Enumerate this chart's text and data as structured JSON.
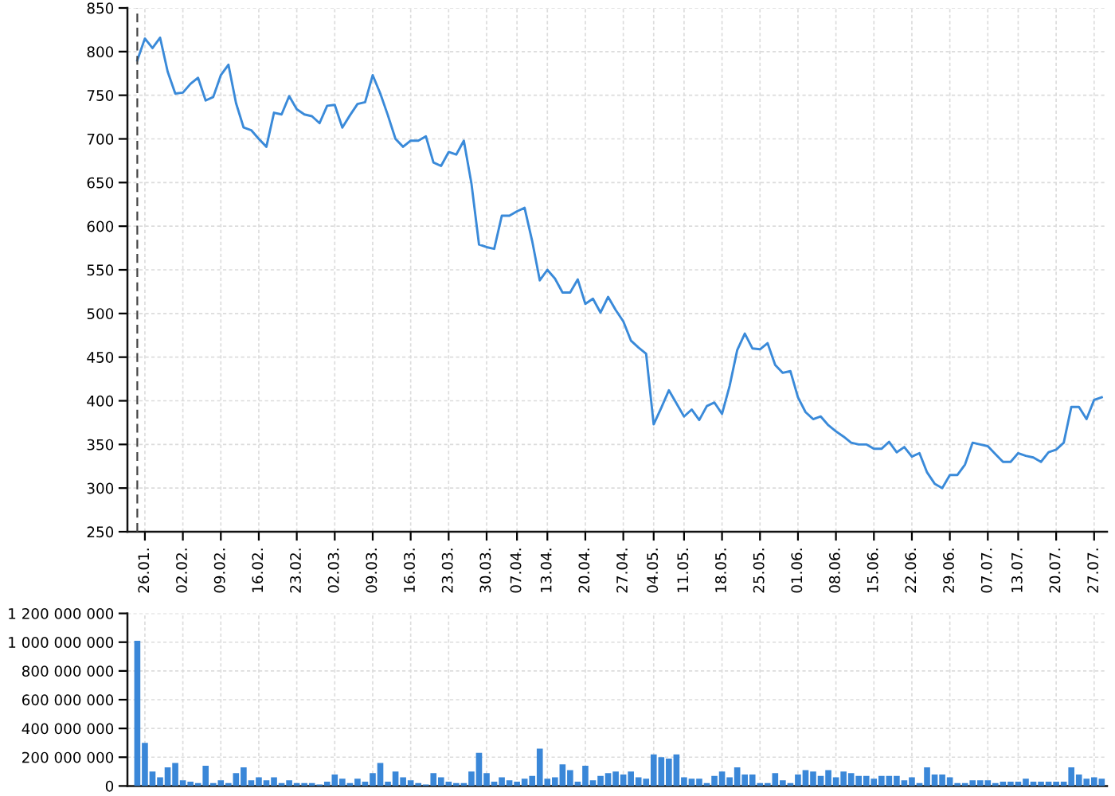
{
  "chart_data": [
    {
      "type": "line",
      "color": "#3a8ad9",
      "categories": [
        null,
        "26.01.",
        null,
        null,
        null,
        null,
        "02.02.",
        null,
        null,
        null,
        null,
        "09.02.",
        null,
        null,
        null,
        null,
        "16.02.",
        null,
        null,
        null,
        null,
        "23.02.",
        null,
        null,
        null,
        null,
        "02.03.",
        null,
        null,
        null,
        null,
        "09.03.",
        null,
        null,
        null,
        null,
        "16.03.",
        null,
        null,
        null,
        null,
        "23.03.",
        null,
        null,
        null,
        null,
        "30.03.",
        null,
        null,
        null,
        "07.04.",
        null,
        null,
        null,
        "13.04.",
        null,
        null,
        null,
        null,
        "20.04.",
        null,
        null,
        null,
        null,
        "27.04.",
        null,
        null,
        null,
        "04.05.",
        null,
        null,
        null,
        "11.05.",
        null,
        null,
        null,
        null,
        "18.05.",
        null,
        null,
        null,
        null,
        "25.05.",
        null,
        null,
        null,
        null,
        "01.06.",
        null,
        null,
        null,
        null,
        "08.06.",
        null,
        null,
        null,
        null,
        "15.06.",
        null,
        null,
        null,
        null,
        "22.06.",
        null,
        null,
        null,
        null,
        "29.06.",
        null,
        null,
        null,
        null,
        "07.07.",
        null,
        null,
        null,
        "13.07.",
        null,
        null,
        null,
        null,
        "20.07.",
        null,
        null,
        null,
        null,
        "27.07.",
        null
      ],
      "values": [
        790,
        815,
        804,
        816,
        777,
        752,
        753,
        763,
        770,
        744,
        748,
        773,
        785,
        741,
        713,
        710,
        700,
        691,
        730,
        728,
        749,
        734,
        728,
        726,
        718,
        738,
        739,
        713,
        727,
        740,
        742,
        773,
        752,
        727,
        700,
        691,
        698,
        698,
        703,
        673,
        669,
        685,
        682,
        698,
        649,
        579,
        576,
        574,
        612,
        612,
        617,
        621,
        583,
        538,
        550,
        540,
        524,
        524,
        539,
        511,
        517,
        501,
        519,
        504,
        491,
        469,
        461,
        454,
        373,
        392,
        412,
        397,
        382,
        390,
        378,
        394,
        398,
        385,
        417,
        458,
        477,
        460,
        459,
        466,
        441,
        432,
        434,
        404,
        387,
        379,
        382,
        372,
        365,
        359,
        352,
        350,
        350,
        345,
        345,
        353,
        341,
        347,
        336,
        340,
        318,
        305,
        300,
        315,
        315,
        327,
        352,
        350,
        348,
        339,
        330,
        330,
        340,
        337,
        335,
        330,
        341,
        344,
        352,
        393,
        393,
        379,
        401,
        404
      ],
      "ylim": [
        250,
        850
      ],
      "yticks": [
        250,
        300,
        350,
        400,
        450,
        500,
        550,
        600,
        650,
        700,
        750,
        800,
        850
      ],
      "grid": true
    },
    {
      "type": "bar",
      "color": "#3a87d8",
      "categories": [
        null,
        "26.01.",
        null,
        null,
        null,
        null,
        "02.02.",
        null,
        null,
        null,
        null,
        "09.02.",
        null,
        null,
        null,
        null,
        "16.02.",
        null,
        null,
        null,
        null,
        "23.02.",
        null,
        null,
        null,
        null,
        "02.03.",
        null,
        null,
        null,
        null,
        "09.03.",
        null,
        null,
        null,
        null,
        "16.03.",
        null,
        null,
        null,
        null,
        "23.03.",
        null,
        null,
        null,
        null,
        "30.03.",
        null,
        null,
        null,
        "07.04.",
        null,
        null,
        null,
        "13.04.",
        null,
        null,
        null,
        null,
        "20.04.",
        null,
        null,
        null,
        null,
        "27.04.",
        null,
        null,
        null,
        "04.05.",
        null,
        null,
        null,
        "11.05.",
        null,
        null,
        null,
        null,
        "18.05.",
        null,
        null,
        null,
        null,
        "25.05.",
        null,
        null,
        null,
        null,
        "01.06.",
        null,
        null,
        null,
        null,
        "08.06.",
        null,
        null,
        null,
        null,
        "15.06.",
        null,
        null,
        null,
        null,
        "22.06.",
        null,
        null,
        null,
        null,
        "29.06.",
        null,
        null,
        null,
        null,
        "07.07.",
        null,
        null,
        null,
        "13.07.",
        null,
        null,
        null,
        null,
        "20.07.",
        null,
        null,
        null,
        null,
        "27.07.",
        null
      ],
      "values": [
        1010000000,
        300000000,
        100000000,
        60000000,
        130000000,
        160000000,
        40000000,
        30000000,
        20000000,
        140000000,
        20000000,
        40000000,
        20000000,
        90000000,
        130000000,
        40000000,
        60000000,
        40000000,
        60000000,
        20000000,
        40000000,
        20000000,
        20000000,
        20000000,
        10000000,
        30000000,
        80000000,
        50000000,
        20000000,
        50000000,
        30000000,
        90000000,
        160000000,
        30000000,
        100000000,
        60000000,
        40000000,
        20000000,
        10000000,
        90000000,
        60000000,
        30000000,
        20000000,
        20000000,
        100000000,
        230000000,
        90000000,
        30000000,
        60000000,
        40000000,
        30000000,
        50000000,
        70000000,
        260000000,
        50000000,
        60000000,
        150000000,
        110000000,
        30000000,
        140000000,
        40000000,
        70000000,
        90000000,
        100000000,
        80000000,
        100000000,
        60000000,
        50000000,
        220000000,
        200000000,
        190000000,
        220000000,
        60000000,
        50000000,
        50000000,
        20000000,
        70000000,
        100000000,
        60000000,
        130000000,
        80000000,
        80000000,
        20000000,
        20000000,
        90000000,
        40000000,
        20000000,
        80000000,
        110000000,
        100000000,
        70000000,
        110000000,
        60000000,
        100000000,
        90000000,
        70000000,
        70000000,
        50000000,
        70000000,
        70000000,
        70000000,
        40000000,
        60000000,
        20000000,
        130000000,
        80000000,
        80000000,
        60000000,
        20000000,
        20000000,
        40000000,
        40000000,
        40000000,
        20000000,
        30000000,
        30000000,
        30000000,
        50000000,
        30000000,
        30000000,
        30000000,
        30000000,
        30000000,
        130000000,
        80000000,
        50000000,
        60000000,
        50000000
      ],
      "ylim": [
        0,
        1200000000
      ],
      "yticks": [
        0,
        {
          "value": 200000000,
          "label": "200 000 000"
        },
        {
          "value": 400000000,
          "label": "400 000 000"
        },
        {
          "value": 600000000,
          "label": "600 000 000"
        },
        {
          "value": 800000000,
          "label": "800 000 000"
        },
        {
          "value": 1000000000,
          "label": "1 000 000 000"
        },
        {
          "value": 1200000000,
          "label": "1 200 000 000"
        }
      ],
      "grid": true,
      "tick_labels": "y"
    }
  ]
}
